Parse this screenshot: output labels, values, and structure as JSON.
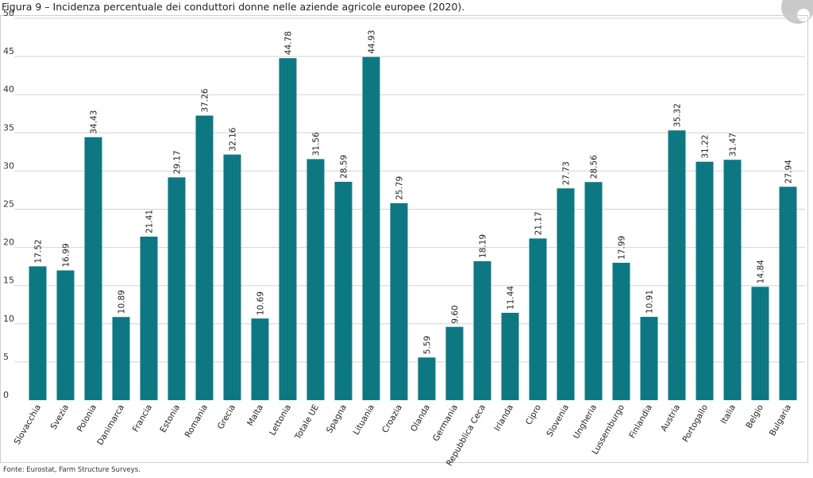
{
  "title": "Figura 9 – Incidenza percentuale dei conduttori donne nelle aziende agricole europee (2020).",
  "source": "Fonte: Eurostat, Farm Structure Surveys.",
  "colors": {
    "bar": "#0e7882",
    "grid": "#d4d4d4",
    "frame": "#cfcfcf"
  },
  "chart_data": {
    "type": "bar",
    "title": "Figura 9 – Incidenza percentuale dei conduttori donne nelle aziende agricole europee (2020).",
    "xlabel": "",
    "ylabel": "",
    "ylim": [
      0,
      50
    ],
    "yticks": [
      0,
      5,
      10,
      15,
      20,
      25,
      30,
      35,
      40,
      45,
      50
    ],
    "grid": true,
    "categories": [
      "Slovacchia",
      "Svezia",
      "Polonia",
      "Danimarca",
      "Francia",
      "Estonia",
      "Romania",
      "Grecia",
      "Malta",
      "Lettonia",
      "Totale UE",
      "Spagna",
      "Lituania",
      "Croazia",
      "Olanda",
      "Germania",
      "Repubblica Ceca",
      "Irlanda",
      "Cipro",
      "Slovenia",
      "Ungheria",
      "Lussemburgo",
      "Finlandia",
      "Austria",
      "Portogallo",
      "Italia",
      "Belgio",
      "Bulgaria"
    ],
    "values": [
      17.52,
      16.99,
      34.43,
      10.89,
      21.41,
      29.17,
      37.26,
      32.16,
      10.69,
      44.78,
      31.56,
      28.59,
      44.93,
      25.79,
      5.59,
      9.6,
      18.19,
      11.44,
      21.17,
      27.73,
      28.56,
      17.99,
      10.91,
      35.32,
      31.22,
      31.47,
      14.84,
      27.94
    ],
    "data_labels": [
      "17.52",
      "16.99",
      "34.43",
      "10.89",
      "21.41",
      "29.17",
      "37.26",
      "32.16",
      "10.69",
      "44.78",
      "31.56",
      "28.59",
      "44.93",
      "25.79",
      "5.59",
      "9.60",
      "18.19",
      "11.44",
      "21.17",
      "27.73",
      "28.56",
      "17.99",
      "10.91",
      "35.32",
      "31.22",
      "31.47",
      "14.84",
      "27.94"
    ]
  }
}
